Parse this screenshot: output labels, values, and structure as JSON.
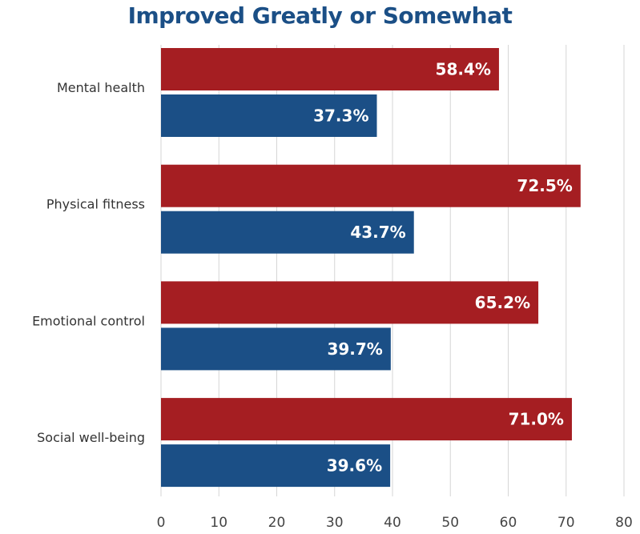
{
  "chart_data": {
    "type": "bar",
    "orientation": "horizontal",
    "title": "Improved Greatly or Somewhat",
    "categories": [
      "Mental health",
      "Physical fitness",
      "Emotional control",
      "Social well-being"
    ],
    "series": [
      {
        "values": [
          58.4,
          72.5,
          65.2,
          71.0
        ],
        "color": "#a51e22",
        "labels": [
          "58.4%",
          "72.5%",
          "65.2%",
          "71.0%"
        ]
      },
      {
        "values": [
          37.3,
          43.7,
          39.7,
          39.6
        ],
        "color": "#1b4f86",
        "labels": [
          "37.3%",
          "43.7%",
          "39.7%",
          "39.6%"
        ]
      }
    ],
    "xlim": [
      0,
      80
    ],
    "xticks": [
      0,
      10,
      20,
      30,
      40,
      50,
      60,
      70,
      80
    ],
    "grid": true,
    "legend": "none"
  }
}
